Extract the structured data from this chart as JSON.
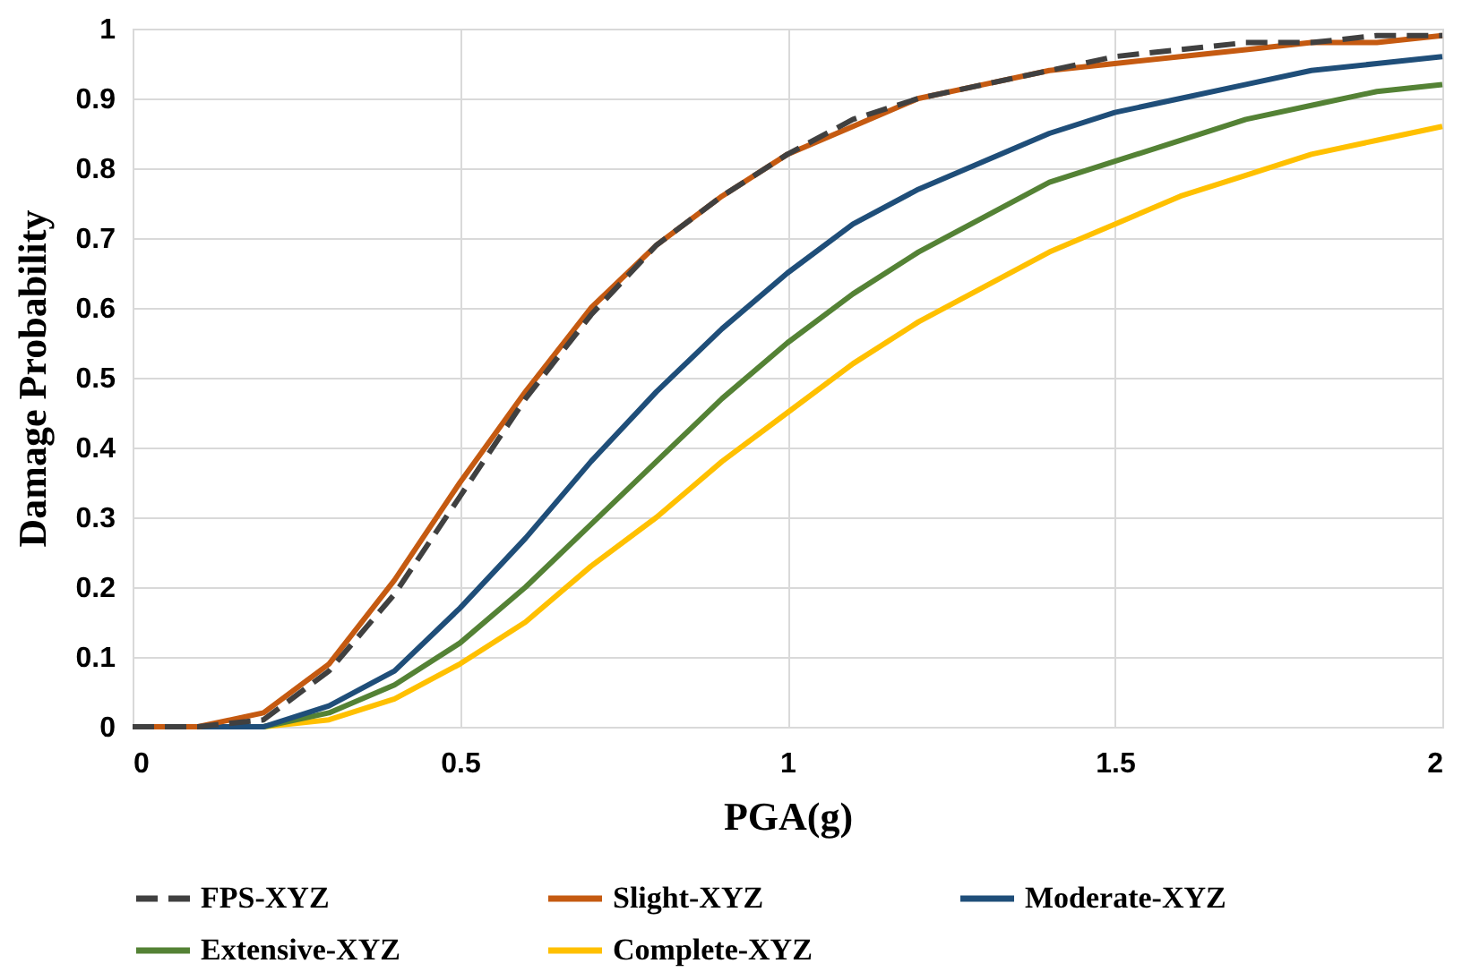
{
  "chart_data": {
    "type": "line",
    "xlabel": "PGA(g)",
    "ylabel": "Damage Probability",
    "x": [
      0,
      0.1,
      0.2,
      0.3,
      0.4,
      0.5,
      0.6,
      0.7,
      0.8,
      0.9,
      1.0,
      1.1,
      1.2,
      1.3,
      1.4,
      1.5,
      1.6,
      1.7,
      1.8,
      1.9,
      2.0
    ],
    "series": [
      {
        "name": "FPS-XYZ",
        "color": "#404040",
        "line_style": "dashed",
        "values": [
          0,
          0,
          0.01,
          0.08,
          0.19,
          0.33,
          0.47,
          0.59,
          0.69,
          0.76,
          0.82,
          0.87,
          0.9,
          0.92,
          0.94,
          0.96,
          0.97,
          0.98,
          0.98,
          0.99,
          0.99
        ]
      },
      {
        "name": "Slight-XYZ",
        "color": "#c55a11",
        "line_style": "solid",
        "values": [
          0,
          0,
          0.02,
          0.09,
          0.21,
          0.35,
          0.48,
          0.6,
          0.69,
          0.76,
          0.82,
          0.86,
          0.9,
          0.92,
          0.94,
          0.95,
          0.96,
          0.97,
          0.98,
          0.98,
          0.99
        ]
      },
      {
        "name": "Moderate-XYZ",
        "color": "#1f4e79",
        "line_style": "solid",
        "values": [
          0,
          0,
          0,
          0.03,
          0.08,
          0.17,
          0.27,
          0.38,
          0.48,
          0.57,
          0.65,
          0.72,
          0.77,
          0.81,
          0.85,
          0.88,
          0.9,
          0.92,
          0.94,
          0.95,
          0.96
        ]
      },
      {
        "name": "Extensive-XYZ",
        "color": "#548235",
        "line_style": "solid",
        "values": [
          0,
          0,
          0,
          0.02,
          0.06,
          0.12,
          0.2,
          0.29,
          0.38,
          0.47,
          0.55,
          0.62,
          0.68,
          0.73,
          0.78,
          0.81,
          0.84,
          0.87,
          0.89,
          0.91,
          0.92
        ]
      },
      {
        "name": "Complete-XYZ",
        "color": "#ffc000",
        "line_style": "solid",
        "values": [
          0,
          0,
          0,
          0.01,
          0.04,
          0.09,
          0.15,
          0.23,
          0.3,
          0.38,
          0.45,
          0.52,
          0.58,
          0.63,
          0.68,
          0.72,
          0.76,
          0.79,
          0.82,
          0.84,
          0.86
        ]
      }
    ],
    "xlim": [
      0,
      2
    ],
    "xticks": [
      0,
      0.5,
      1,
      1.5,
      2
    ],
    "ylim": [
      0,
      1
    ],
    "yticks": [
      0,
      0.1,
      0.2,
      0.3,
      0.4,
      0.5,
      0.6,
      0.7,
      0.8,
      0.9,
      1
    ],
    "grid": true,
    "legend": "bottom",
    "marker": "none"
  }
}
